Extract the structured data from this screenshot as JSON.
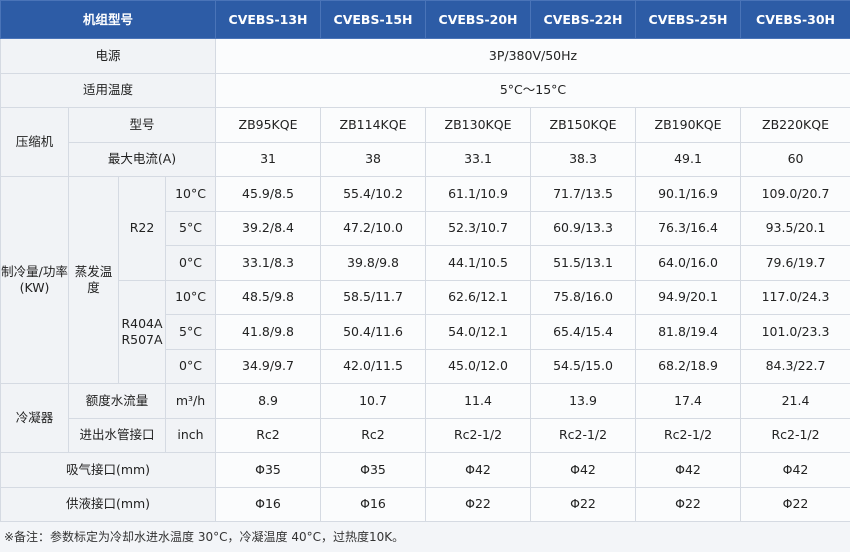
{
  "table": {
    "header": [
      "机组型号",
      "CVEBS-13H",
      "CVEBS-15H",
      "CVEBS-20H",
      "CVEBS-22H",
      "CVEBS-25H",
      "CVEBS-30H"
    ],
    "power": {
      "label": "电源",
      "value": "3P/380V/50Hz"
    },
    "temp_range": {
      "label": "适用温度",
      "value": "5°C～15°C"
    },
    "compressor": {
      "label": "压缩机",
      "model": {
        "label": "型号",
        "values": [
          "ZB95KQE",
          "ZB114KQE",
          "ZB130KQE",
          "ZB150KQE",
          "ZB190KQE",
          "ZB220KQE"
        ]
      },
      "max_current": {
        "label": "最大电流(A)",
        "values": [
          31,
          38,
          33.1,
          38.3,
          49.1,
          60
        ]
      }
    },
    "cooling": {
      "label": "制冷量/功率(KW)",
      "evap_label": "蒸发温度",
      "refrigerants": [
        {
          "names": [
            "R22"
          ],
          "rows": [
            {
              "temp": "10°C",
              "values": [
                "45.9/8.5",
                "55.4/10.2",
                "61.1/10.9",
                "71.7/13.5",
                "90.1/16.9",
                "109.0/20.7"
              ]
            },
            {
              "temp": "5°C",
              "values": [
                "39.2/8.4",
                "47.2/10.0",
                "52.3/10.7",
                "60.9/13.3",
                "76.3/16.4",
                "93.5/20.1"
              ]
            },
            {
              "temp": "0°C",
              "values": [
                "33.1/8.3",
                "39.8/9.8",
                "44.1/10.5",
                "51.5/13.1",
                "64.0/16.0",
                "79.6/19.7"
              ]
            }
          ]
        },
        {
          "names": [
            "R404A",
            "R507A"
          ],
          "rows": [
            {
              "temp": "10°C",
              "values": [
                "48.5/9.8",
                "58.5/11.7",
                "62.6/12.1",
                "75.8/16.0",
                "94.9/20.1",
                "117.0/24.3"
              ]
            },
            {
              "temp": "5°C",
              "values": [
                "41.8/9.8",
                "50.4/11.6",
                "54.0/12.1",
                "65.4/15.4",
                "81.8/19.4",
                "101.0/23.3"
              ]
            },
            {
              "temp": "0°C",
              "values": [
                "34.9/9.7",
                "42.0/11.5",
                "45.0/12.0",
                "54.5/15.0",
                "68.2/18.9",
                "84.3/22.7"
              ]
            }
          ]
        }
      ]
    },
    "condenser": {
      "label": "冷凝器",
      "rows": [
        {
          "label": "额度水流量",
          "unit": "m³/h",
          "values": [
            8.9,
            10.7,
            11.4,
            13.9,
            17.4,
            21.4
          ]
        },
        {
          "label": "进出水管接口",
          "unit": "inch",
          "values": [
            "Rc2",
            "Rc2",
            "Rc2-1/2",
            "Rc2-1/2",
            "Rc2-1/2",
            "Rc2-1/2"
          ]
        }
      ]
    },
    "suction": {
      "label": "吸气接口(mm)",
      "values": [
        "Φ35",
        "Φ35",
        "Φ42",
        "Φ42",
        "Φ42",
        "Φ42"
      ]
    },
    "liquid": {
      "label": "供液接口(mm)",
      "values": [
        "Φ16",
        "Φ16",
        "Φ22",
        "Φ22",
        "Φ22",
        "Φ22"
      ]
    },
    "note": "※备注：参数标定为冷却水进水温度 30°C，冷凝温度 40°C，过热度10K。"
  }
}
